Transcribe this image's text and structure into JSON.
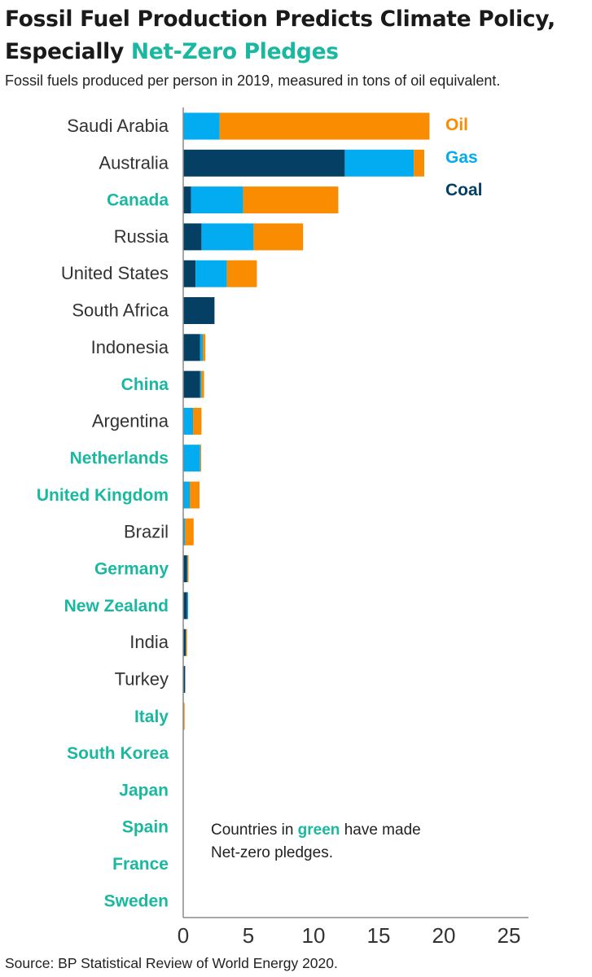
{
  "header": {
    "title_line1": "Fossil Fuel Production Predicts Climate Policy,",
    "title_line2_prefix": "Especially ",
    "title_line2_accent": "Net-Zero Pledges",
    "subtitle": "Fossil fuels produced per person in 2019, measured in tons of oil equivalent."
  },
  "annotation": {
    "prefix": "Countries in ",
    "highlight": "green",
    "suffix": " have made",
    "line2": "Net-zero pledges."
  },
  "source": "Source: BP Statistical Review of World Energy 2020.",
  "colors": {
    "coal": "#053f64",
    "gas": "#03acf1",
    "oil": "#fa8c01",
    "pledge_label": "#1ab8a0",
    "default_label": "#333333",
    "axis": "#8a8a8a"
  },
  "chart_data": {
    "type": "bar",
    "orientation": "horizontal",
    "stacked": true,
    "categories": [
      "Saudi Arabia",
      "Australia",
      "Canada",
      "Russia",
      "United States",
      "South Africa",
      "Indonesia",
      "China",
      "Argentina",
      "Netherlands",
      "United Kingdom",
      "Brazil",
      "Germany",
      "New Zealand",
      "India",
      "Turkey",
      "Italy",
      "South Korea",
      "Japan",
      "Spain",
      "France",
      "Sweden"
    ],
    "net_zero_pledge": [
      false,
      false,
      true,
      false,
      false,
      false,
      false,
      true,
      false,
      true,
      true,
      false,
      true,
      true,
      false,
      false,
      true,
      true,
      true,
      true,
      true,
      true
    ],
    "series": [
      {
        "name": "Coal",
        "values": [
          0,
          12.4,
          0.6,
          1.4,
          0.95,
          2.4,
          1.3,
          1.3,
          0.0,
          0.0,
          0.05,
          0.05,
          0.3,
          0.3,
          0.2,
          0.15,
          0.0,
          0.0,
          0.0,
          0.0,
          0.0,
          0.0
        ]
      },
      {
        "name": "Gas",
        "values": [
          2.8,
          5.3,
          4.0,
          4.0,
          2.4,
          0.0,
          0.2,
          0.1,
          0.75,
          1.3,
          0.45,
          0.1,
          0.03,
          0.02,
          0.02,
          0.0,
          0.03,
          0.0,
          0.0,
          0.0,
          0.0,
          0.0
        ]
      },
      {
        "name": "Oil",
        "values": [
          16.1,
          0.8,
          7.3,
          3.8,
          2.3,
          0.0,
          0.2,
          0.2,
          0.65,
          0.05,
          0.75,
          0.65,
          0.02,
          0.0,
          0.03,
          0.0,
          0.05,
          0.0,
          0.0,
          0.0,
          0.0,
          0.0
        ]
      }
    ],
    "legend": [
      "Oil",
      "Gas",
      "Coal"
    ],
    "legend_placement": "top-right",
    "xticks": [
      0,
      5,
      10,
      15,
      20,
      25
    ],
    "xlim": [
      0,
      26.5
    ],
    "grid": false
  }
}
